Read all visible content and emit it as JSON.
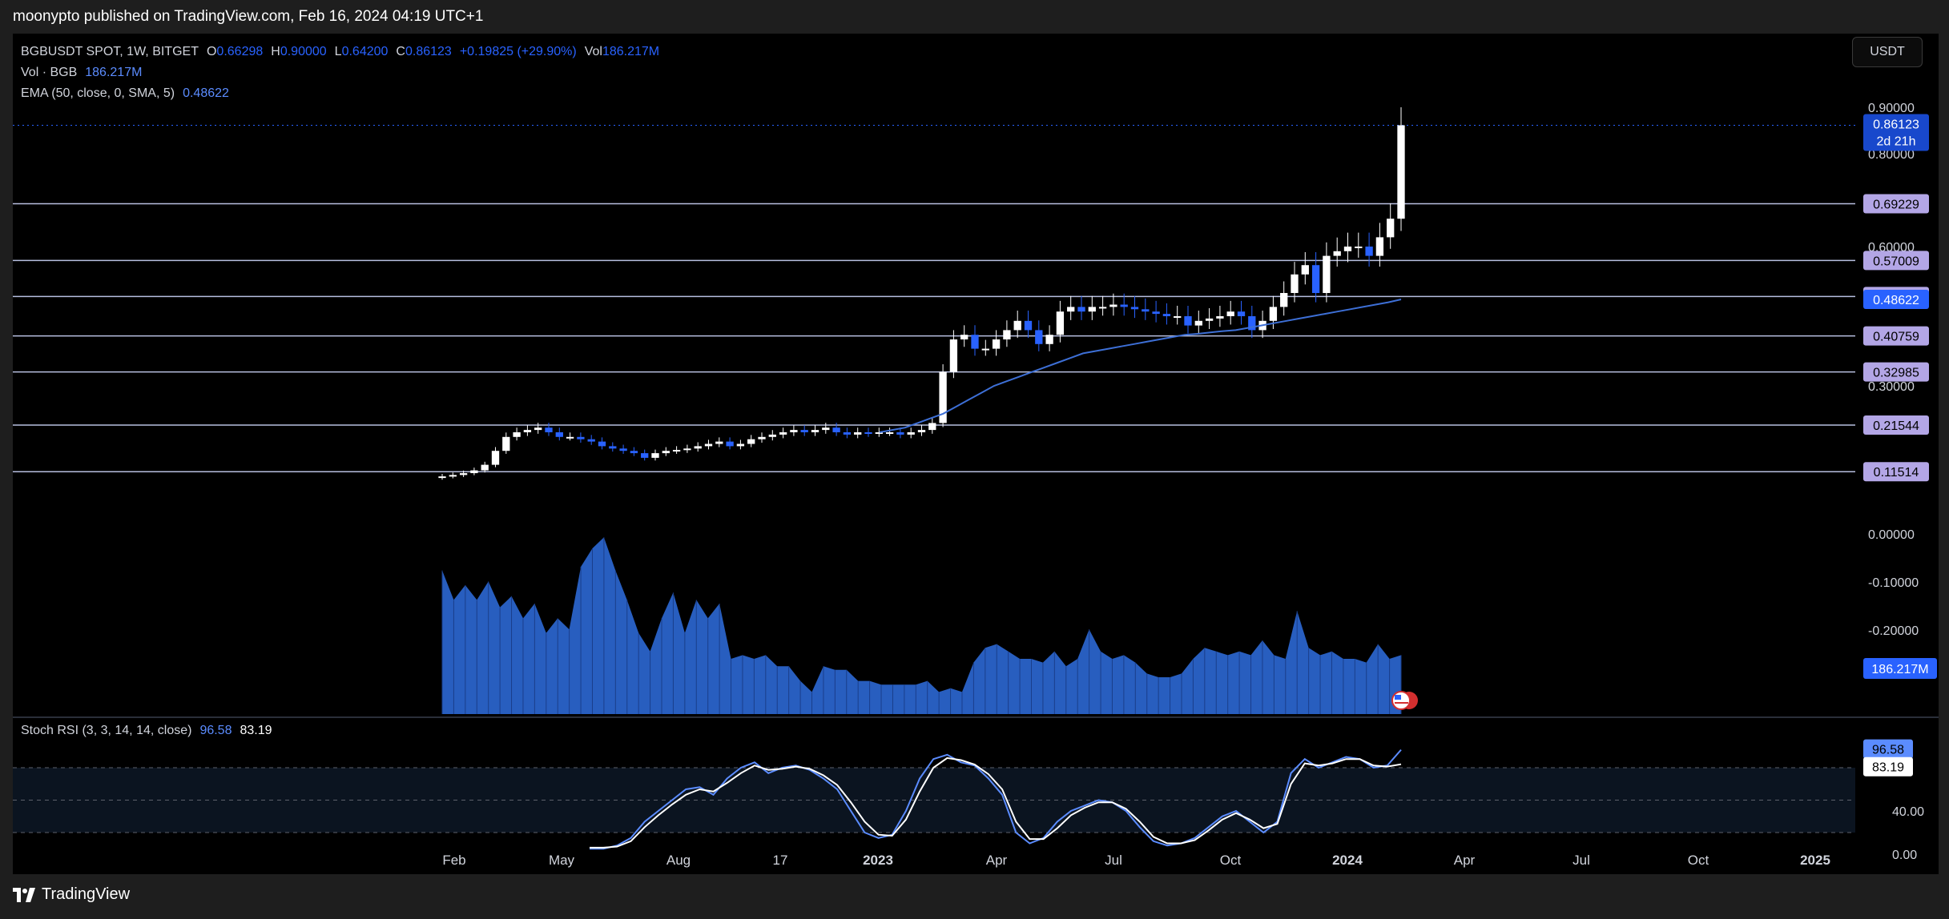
{
  "header": {
    "publisher": "moonypto published on TradingView.com, Feb 16, 2024 04:19 UTC+1"
  },
  "footer": {
    "logo_text": "TradingView"
  },
  "toolbar": {
    "currency": "USDT"
  },
  "legend": {
    "symbol": "BGBUSDT SPOT, 1W, BITGET",
    "o_label": "O",
    "o": "0.66298",
    "h_label": "H",
    "h": "0.90000",
    "l_label": "L",
    "l": "0.64200",
    "c_label": "C",
    "c": "0.86123",
    "change": "+0.19825 (+29.90%)",
    "vol_label": "Vol",
    "vol": "186.217M",
    "vol_row_label": "Vol · BGB",
    "vol_row_value": "186.217M",
    "ema_label": "EMA (50, close, 0, SMA, 5)",
    "ema_value": "0.48622"
  },
  "rsi_legend": {
    "label": "Stoch RSI (3, 3, 14, 14, close)",
    "k": "96.58",
    "d": "83.19"
  },
  "colors": {
    "up": "#ffffff",
    "down": "#2962ff",
    "ema": "#3d6fd6",
    "volume": "#2f6fe0",
    "hline": "#b8bfe0",
    "tag": "#b3a6e6",
    "rsi_k": "#5b8cff",
    "rsi_d": "#ffffff",
    "bg": "#000000"
  },
  "chart_data": {
    "type": "candlestick",
    "title": "BGBUSDT SPOT, 1W, BITGET",
    "x_ticks": [
      "Feb",
      "May",
      "Aug",
      "17",
      "2023",
      "Apr",
      "Jul",
      "Oct",
      "2024",
      "Apr",
      "Jul",
      "Oct",
      "2025"
    ],
    "y_ticks": [
      "0.90000",
      "0.80000",
      "0.60000",
      "0.30000",
      "0.00000",
      "-0.10000",
      "-0.20000"
    ],
    "ylim": [
      -0.3,
      0.9
    ],
    "horizontal_levels": [
      0.69229,
      0.57009,
      0.49245,
      0.40759,
      0.32985,
      0.21544,
      0.11514
    ],
    "last_price": {
      "value": "0.86123",
      "countdown": "2d 21h"
    },
    "ema_last": "0.48622",
    "volume_last": "186.217M",
    "candles_close": [
      0.105,
      0.108,
      0.112,
      0.118,
      0.13,
      0.16,
      0.19,
      0.2,
      0.205,
      0.21,
      0.2,
      0.19,
      0.19,
      0.185,
      0.18,
      0.17,
      0.165,
      0.16,
      0.155,
      0.145,
      0.155,
      0.16,
      0.162,
      0.165,
      0.17,
      0.175,
      0.18,
      0.17,
      0.175,
      0.185,
      0.19,
      0.195,
      0.2,
      0.205,
      0.2,
      0.205,
      0.21,
      0.2,
      0.195,
      0.2,
      0.198,
      0.2,
      0.2,
      0.195,
      0.2,
      0.205,
      0.22,
      0.33,
      0.4,
      0.41,
      0.38,
      0.38,
      0.4,
      0.42,
      0.44,
      0.42,
      0.39,
      0.41,
      0.46,
      0.47,
      0.46,
      0.47,
      0.47,
      0.475,
      0.47,
      0.465,
      0.46,
      0.455,
      0.45,
      0.45,
      0.43,
      0.44,
      0.445,
      0.45,
      0.46,
      0.45,
      0.42,
      0.44,
      0.47,
      0.5,
      0.54,
      0.56,
      0.5,
      0.58,
      0.59,
      0.6,
      0.6,
      0.58,
      0.62,
      0.66,
      0.86123
    ],
    "ema": [
      0.2,
      0.205,
      0.21,
      0.22,
      0.23,
      0.24,
      0.255,
      0.27,
      0.285,
      0.3,
      0.31,
      0.32,
      0.33,
      0.34,
      0.35,
      0.36,
      0.37,
      0.375,
      0.38,
      0.385,
      0.39,
      0.395,
      0.4,
      0.405,
      0.41,
      0.412,
      0.415,
      0.418,
      0.42,
      0.425,
      0.43,
      0.435,
      0.44,
      0.445,
      0.45,
      0.455,
      0.46,
      0.465,
      0.47,
      0.475,
      0.48,
      0.48622
    ],
    "volume": [
      0.78,
      0.62,
      0.7,
      0.62,
      0.72,
      0.58,
      0.64,
      0.52,
      0.6,
      0.44,
      0.52,
      0.46,
      0.8,
      0.9,
      0.96,
      0.78,
      0.62,
      0.44,
      0.34,
      0.52,
      0.66,
      0.44,
      0.62,
      0.52,
      0.6,
      0.3,
      0.32,
      0.3,
      0.32,
      0.26,
      0.26,
      0.18,
      0.12,
      0.26,
      0.24,
      0.24,
      0.18,
      0.18,
      0.16,
      0.16,
      0.16,
      0.16,
      0.18,
      0.12,
      0.14,
      0.12,
      0.28,
      0.36,
      0.38,
      0.34,
      0.3,
      0.3,
      0.28,
      0.34,
      0.26,
      0.3,
      0.46,
      0.34,
      0.3,
      0.32,
      0.28,
      0.22,
      0.2,
      0.2,
      0.22,
      0.3,
      0.36,
      0.34,
      0.32,
      0.34,
      0.32,
      0.4,
      0.32,
      0.3,
      0.56,
      0.36,
      0.32,
      0.34,
      0.3,
      0.3,
      0.28,
      0.38,
      0.3,
      0.32
    ],
    "stoch_k": [
      5,
      5,
      8,
      15,
      30,
      40,
      50,
      60,
      62,
      55,
      70,
      80,
      85,
      75,
      80,
      82,
      78,
      70,
      60,
      40,
      20,
      15,
      18,
      40,
      70,
      88,
      92,
      85,
      82,
      70,
      55,
      20,
      10,
      15,
      30,
      40,
      45,
      50,
      48,
      40,
      25,
      12,
      8,
      10,
      15,
      25,
      35,
      40,
      30,
      20,
      30,
      75,
      88,
      80,
      85,
      90,
      88,
      80,
      82,
      96.58
    ],
    "stoch_d": [
      6,
      6,
      7,
      12,
      25,
      36,
      46,
      55,
      60,
      58,
      66,
      75,
      82,
      78,
      79,
      81,
      79,
      73,
      64,
      48,
      30,
      18,
      17,
      32,
      58,
      80,
      89,
      87,
      83,
      74,
      60,
      30,
      14,
      14,
      24,
      36,
      43,
      48,
      48,
      42,
      30,
      16,
      10,
      10,
      13,
      22,
      32,
      38,
      32,
      24,
      28,
      65,
      84,
      82,
      84,
      88,
      88,
      82,
      81,
      83.19
    ],
    "stoch_ticks": [
      "40.00",
      "0.00"
    ]
  }
}
